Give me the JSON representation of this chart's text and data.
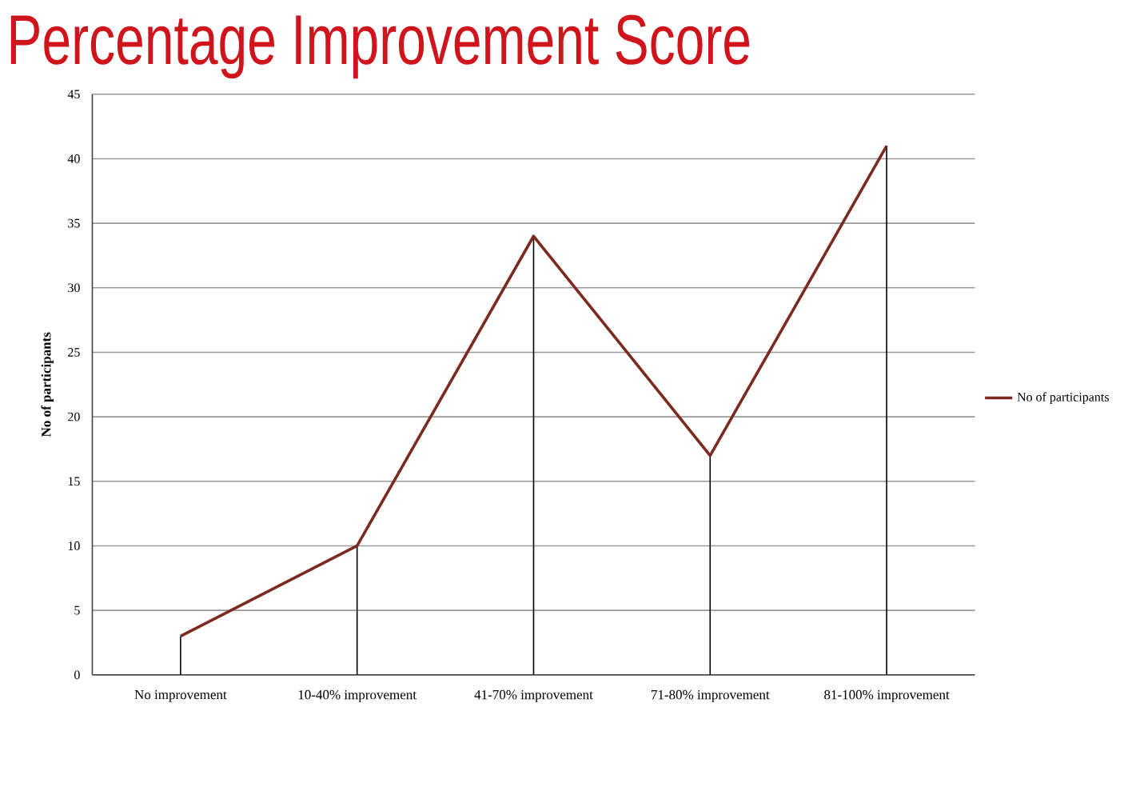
{
  "chart_data": {
    "type": "line",
    "title": "Percentage Improvement Score",
    "ylabel": "No of participants",
    "categories": [
      "No improvement",
      "10-40% improvement",
      "41-70% improvement",
      "71-80% improvement",
      "81-100% improvement"
    ],
    "series": [
      {
        "type": "bar",
        "color": "#000000",
        "values": [
          3,
          10,
          34,
          17,
          41
        ]
      },
      {
        "name": "No of participants",
        "color": "#7b2a1f",
        "values": [
          3,
          10,
          34,
          17,
          41
        ]
      }
    ],
    "ylim": [
      0,
      45
    ],
    "yticks": [
      0,
      5,
      10,
      15,
      20,
      25,
      30,
      35,
      40,
      45
    ],
    "grid": "y",
    "legend": "right",
    "marker": "none",
    "line_style": "solid"
  }
}
